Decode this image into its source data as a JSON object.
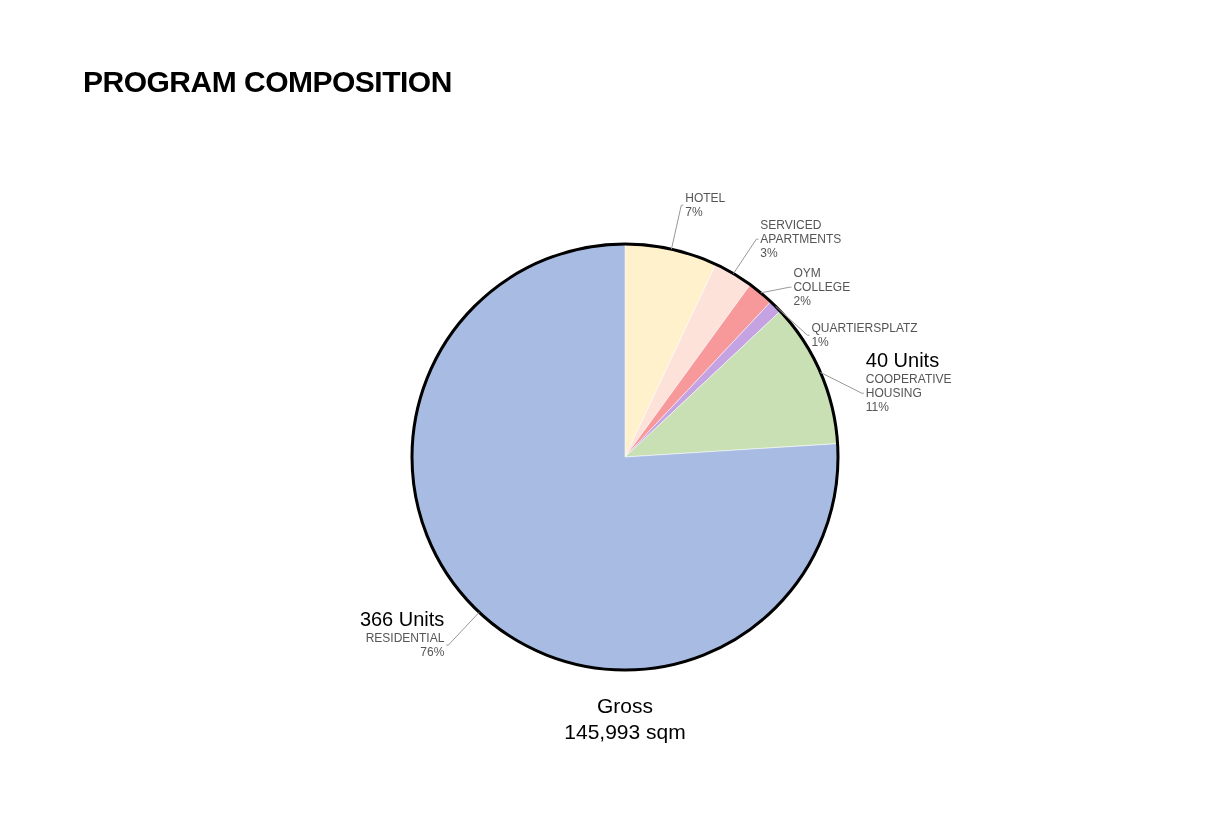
{
  "chart_data": {
    "type": "pie",
    "title": "PROGRAM COMPOSITION",
    "categories": [
      "HOTEL",
      "SERVICED APARTMENTS",
      "OYM COLLEGE",
      "QUARTIERSPLATZ",
      "COOPERATIVE HOUSING",
      "RESIDENTIAL"
    ],
    "values": [
      7,
      3,
      2,
      1,
      11,
      76
    ],
    "colors": [
      "#fff1cc",
      "#fce2d9",
      "#f7999a",
      "#c5a2e2",
      "#c8e0b4",
      "#a8bce3"
    ],
    "value_labels": [
      "7%",
      "3%",
      "2%",
      "1%",
      "11%",
      "76%"
    ],
    "annotations": [
      {
        "text": "40 Units",
        "x": "COOPERATIVE HOUSING"
      },
      {
        "text": "366 Units",
        "x": "RESIDENTIAL"
      },
      "Gross\n145,993 sqm"
    ]
  }
}
